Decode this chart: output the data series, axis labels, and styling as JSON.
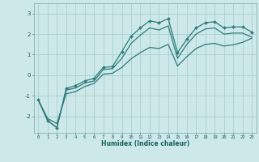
{
  "xlabel": "Humidex (Indice chaleur)",
  "background_color": "#cce8e8",
  "grid_color": "#aacfcf",
  "line_color": "#2e7b7b",
  "xlim": [
    -0.5,
    23.5
  ],
  "ylim": [
    -2.8,
    3.5
  ],
  "yticks": [
    -2,
    -1,
    0,
    1,
    2,
    3
  ],
  "xticks": [
    0,
    1,
    2,
    3,
    4,
    5,
    6,
    7,
    8,
    9,
    10,
    11,
    12,
    13,
    14,
    15,
    16,
    17,
    18,
    19,
    20,
    21,
    22,
    23
  ],
  "line1_x": [
    0,
    1,
    2,
    3,
    4,
    5,
    6,
    7,
    8,
    9,
    10,
    11,
    12,
    13,
    14,
    15,
    16,
    17,
    18,
    19,
    20,
    21,
    22,
    23
  ],
  "line1_y": [
    -1.2,
    -2.2,
    -2.55,
    -0.65,
    -0.5,
    -0.28,
    -0.15,
    0.38,
    0.42,
    1.15,
    1.9,
    2.3,
    2.65,
    2.55,
    2.75,
    1.1,
    1.75,
    2.3,
    2.55,
    2.6,
    2.3,
    2.35,
    2.35,
    2.1
  ],
  "line2_x": [
    0,
    1,
    2,
    3,
    4,
    5,
    6,
    7,
    8,
    9,
    10,
    11,
    12,
    13,
    14,
    15,
    16,
    17,
    18,
    19,
    20,
    21,
    22,
    23
  ],
  "line2_y": [
    -1.2,
    -2.2,
    -2.55,
    -0.72,
    -0.62,
    -0.38,
    -0.28,
    0.28,
    0.32,
    0.82,
    1.55,
    1.95,
    2.3,
    2.2,
    2.4,
    0.82,
    1.5,
    2.0,
    2.25,
    2.3,
    2.0,
    2.05,
    2.05,
    1.85
  ],
  "line3_x": [
    0,
    1,
    2,
    3,
    4,
    5,
    6,
    7,
    8,
    9,
    10,
    11,
    12,
    13,
    14,
    15,
    16,
    17,
    18,
    19,
    20,
    21,
    22,
    23
  ],
  "line3_y": [
    -1.2,
    -2.1,
    -2.35,
    -0.9,
    -0.8,
    -0.55,
    -0.4,
    0.05,
    0.1,
    0.38,
    0.8,
    1.1,
    1.35,
    1.3,
    1.5,
    0.45,
    0.9,
    1.3,
    1.5,
    1.55,
    1.42,
    1.48,
    1.6,
    1.8
  ]
}
